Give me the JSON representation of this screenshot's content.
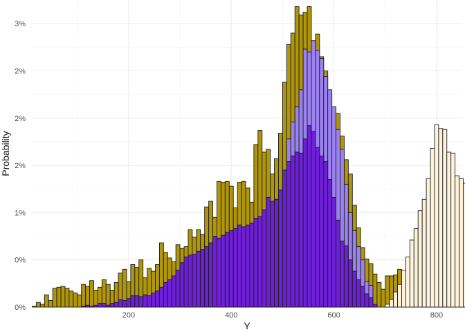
{
  "chart_data": {
    "type": "bar",
    "subtype": "overlaid histogram",
    "title": "",
    "xlabel": "Y",
    "ylabel": "Probability",
    "xlim": [
      10,
      850
    ],
    "ylim": [
      0,
      0.0325
    ],
    "x_ticks": [
      200,
      400,
      600,
      800
    ],
    "x_tick_labels": [
      "200",
      "400",
      "600",
      "800"
    ],
    "y_ticks": [
      0,
      0.005,
      0.01,
      0.015,
      0.02,
      0.025,
      0.03
    ],
    "y_tick_labels": [
      "0%",
      "0%",
      "1%",
      "2%",
      "2%",
      "2%",
      "3%"
    ],
    "grid": true,
    "legend": "none",
    "bin_start": 12,
    "bin_width": 8,
    "series": [
      {
        "color": "#b0960a",
        "values": [
          0.0001,
          0.0005,
          0.0003,
          0.0013,
          0.0007,
          0.002,
          0.0021,
          0.0022,
          0.002,
          0.0017,
          0.0015,
          0.0013,
          0.0024,
          0.0022,
          0.0028,
          0.0018,
          0.0021,
          0.0029,
          0.0024,
          0.0018,
          0.0026,
          0.0036,
          0.004,
          0.0027,
          0.0045,
          0.0042,
          0.005,
          0.0031,
          0.0041,
          0.0038,
          0.0045,
          0.0068,
          0.0058,
          0.0052,
          0.0048,
          0.0066,
          0.0062,
          0.0064,
          0.0082,
          0.0074,
          0.0082,
          0.0077,
          0.0106,
          0.0112,
          0.0095,
          0.0133,
          0.0132,
          0.0133,
          0.0128,
          0.0105,
          0.0132,
          0.0133,
          0.0126,
          0.0111,
          0.0172,
          0.0187,
          0.0164,
          0.0167,
          0.0141,
          0.0157,
          0.0184,
          0.0238,
          0.0278,
          0.029,
          0.0318,
          0.0309,
          0.0312,
          0.0318,
          0.0277,
          0.0289,
          0.0265,
          0.025,
          0.0226,
          0.0212,
          0.0205,
          0.0181,
          0.0156,
          0.0141,
          0.0108,
          0.0084,
          0.0063,
          0.0051,
          0.0046,
          0.0035,
          0.0026,
          0.0019,
          0.0033,
          0.0033,
          0.0034,
          0.004,
          0.0033,
          0.0031,
          0.0052,
          0.0055,
          0.0051,
          0.0048,
          0.0053,
          0.0032,
          0.0046,
          0.0034,
          0.0034,
          0.0029,
          0.0022,
          0.003,
          0.0026,
          0.0026,
          0.0014,
          0.0021,
          0.0013,
          0.0011,
          0.001,
          0.0008,
          0.0008,
          0.0006,
          0.0004
        ]
      },
      {
        "color": "#9b82f0",
        "values": [
          0,
          0,
          0,
          0,
          0,
          0,
          0,
          0,
          0,
          0,
          0,
          0,
          0,
          0,
          0,
          0,
          0,
          0,
          0,
          0,
          0,
          0,
          0,
          0,
          0,
          0,
          0,
          0,
          0,
          0,
          0,
          0,
          0,
          0,
          0,
          0,
          0,
          0,
          0,
          0,
          0,
          0,
          0,
          0,
          0,
          0,
          0,
          0,
          0,
          0,
          0,
          0,
          0,
          0,
          0,
          0,
          0,
          0.0064,
          0.0068,
          0.01,
          0.0112,
          0.0133,
          0.0178,
          0.0196,
          0.0212,
          0.023,
          0.0273,
          0.027,
          0.0282,
          0.0272,
          0.0263,
          0.0244,
          0.023,
          0.0212,
          0.0188,
          0.0167,
          0.013,
          0.01,
          0.0081,
          0.0064,
          0.005,
          0.0027,
          0.0023,
          0.0002,
          0,
          0,
          0,
          0,
          0,
          0,
          0,
          0,
          0,
          0,
          0,
          0,
          0,
          0,
          0,
          0,
          0,
          0,
          0,
          0,
          0,
          0,
          0,
          0,
          0,
          0,
          0,
          0,
          0,
          0,
          0
        ]
      },
      {
        "color": "#6e1fd8",
        "values": [
          0,
          0,
          0,
          0,
          0,
          0,
          0,
          0,
          0,
          0,
          0,
          0,
          0.0001,
          0.0002,
          0.0001,
          0.0002,
          0.0004,
          0.0004,
          0.0002,
          0.0004,
          0.0005,
          0.0008,
          0.0007,
          0.0009,
          0.0012,
          0.0012,
          0.0011,
          0.0013,
          0.0012,
          0.0015,
          0.0017,
          0.0021,
          0.0026,
          0.0029,
          0.0033,
          0.0039,
          0.0047,
          0.0053,
          0.0055,
          0.0056,
          0.0059,
          0.0061,
          0.0064,
          0.0068,
          0.0075,
          0.0073,
          0.0076,
          0.0079,
          0.0081,
          0.0083,
          0.0087,
          0.0085,
          0.0087,
          0.0089,
          0.0094,
          0.0096,
          0.0103,
          0.0116,
          0.0112,
          0.0114,
          0.0124,
          0.0145,
          0.0154,
          0.016,
          0.0164,
          0.0163,
          0.0178,
          0.0192,
          0.0186,
          0.0169,
          0.016,
          0.0154,
          0.0135,
          0.0116,
          0.0092,
          0.007,
          0.0065,
          0.005,
          0.0038,
          0.0029,
          0.0022,
          0.0014,
          0.001,
          0.0003,
          0,
          0,
          0,
          0,
          0,
          0,
          0,
          0,
          0,
          0,
          0,
          0,
          0,
          0,
          0,
          0,
          0,
          0,
          0,
          0,
          0,
          0,
          0,
          0,
          0,
          0,
          0,
          0,
          0,
          0,
          0
        ]
      },
      {
        "color": "#fdf3dc",
        "values": [
          0,
          0,
          0,
          0,
          0,
          0,
          0,
          0,
          0,
          0,
          0,
          0,
          0,
          0,
          0,
          0,
          0,
          0,
          0,
          0,
          0,
          0,
          0,
          0,
          0,
          0,
          0,
          0,
          0,
          0,
          0,
          0,
          0,
          0,
          0,
          0,
          0,
          0,
          0,
          0,
          0,
          0,
          0,
          0,
          0,
          0,
          0,
          0,
          0,
          0,
          0,
          0,
          0,
          0,
          0,
          0,
          0,
          0,
          0,
          0,
          0,
          0,
          0,
          0,
          0,
          0,
          0,
          0,
          0,
          0,
          0,
          0,
          0,
          0,
          0,
          0,
          0,
          0,
          0,
          0,
          0,
          0,
          0,
          0,
          0,
          0,
          0.0003,
          0.0008,
          0.0016,
          0.0024,
          0.0039,
          0.0053,
          0.0071,
          0.0083,
          0.0102,
          0.0114,
          0.0136,
          0.0168,
          0.0193,
          0.0189,
          0.0188,
          0.0164,
          0.0163,
          0.0139,
          0.0136,
          0.0131,
          0.0115,
          0.0106,
          0.0095,
          0.0082,
          0.0071,
          0.0052,
          0.0042,
          0.003,
          0.0016,
          0.0011,
          0.0008
        ]
      }
    ]
  }
}
